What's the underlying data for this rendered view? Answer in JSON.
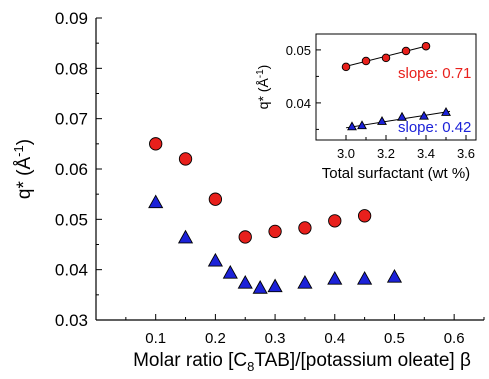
{
  "chart_data": [
    {
      "type": "scatter",
      "xlabel_parts": {
        "pre": "Molar ratio [C",
        "sub": "8",
        "post": "TAB]/[potassium oleate] β"
      },
      "ylabel_parts": {
        "pre": "q* (Å",
        "sup": "-1",
        "post": ")"
      },
      "xlim": [
        0.0,
        0.65
      ],
      "ylim": [
        0.03,
        0.09
      ],
      "xticks": [
        "0.1",
        "0.2",
        "0.3",
        "0.4",
        "0.5",
        "0.6"
      ],
      "xtick_values": [
        0.1,
        0.2,
        0.3,
        0.4,
        0.5,
        0.6
      ],
      "yticks": [
        "0.03",
        "0.04",
        "0.05",
        "0.06",
        "0.07",
        "0.08",
        "0.09"
      ],
      "ytick_values": [
        0.03,
        0.04,
        0.05,
        0.06,
        0.07,
        0.08,
        0.09
      ],
      "series": [
        {
          "marker": "circle",
          "color": "#e8201c",
          "x": [
            0.1,
            0.15,
            0.2,
            0.25,
            0.3,
            0.35,
            0.4,
            0.45
          ],
          "y": [
            0.065,
            0.062,
            0.054,
            0.0465,
            0.0476,
            0.0483,
            0.0497,
            0.0507
          ]
        },
        {
          "marker": "triangle",
          "color": "#1c22d8",
          "x": [
            0.1,
            0.15,
            0.2,
            0.225,
            0.25,
            0.275,
            0.3,
            0.35,
            0.4,
            0.45,
            0.5
          ],
          "y": [
            0.0533,
            0.0463,
            0.0417,
            0.0393,
            0.0373,
            0.0363,
            0.0366,
            0.0373,
            0.0381,
            0.0381,
            0.0385
          ]
        }
      ]
    },
    {
      "type": "scatter",
      "xlabel": "Total surfactant (wt %)",
      "ylabel_parts": {
        "pre": "q* (Å",
        "sup": "-1",
        "post": ")"
      },
      "xlim": [
        2.85,
        3.65
      ],
      "ylim": [
        0.033,
        0.053
      ],
      "xticks": [
        "3.0",
        "3.2",
        "3.4",
        "3.6"
      ],
      "xtick_values": [
        3.0,
        3.2,
        3.4,
        3.6
      ],
      "yticks": [
        "0.04",
        "0.05"
      ],
      "ytick_values": [
        0.04,
        0.05
      ],
      "series": [
        {
          "marker": "circle",
          "color": "#e8201c",
          "x": [
            3.0,
            3.1,
            3.2,
            3.3,
            3.4
          ],
          "y": [
            0.0468,
            0.0479,
            0.0485,
            0.0498,
            0.0507
          ],
          "fit": {
            "x": [
              2.98,
              3.42
            ],
            "y": [
              0.0467,
              0.0509
            ]
          },
          "annotation": "slope: 0.71"
        },
        {
          "marker": "triangle",
          "color": "#1c22d8",
          "x": [
            3.03,
            3.08,
            3.18,
            3.28,
            3.39,
            3.5
          ],
          "y": [
            0.0355,
            0.0357,
            0.0365,
            0.0373,
            0.0375,
            0.0382
          ],
          "fit": {
            "x": [
              3.0,
              3.52
            ],
            "y": [
              0.0353,
              0.0384
            ]
          },
          "annotation": "slope: 0.42"
        }
      ]
    }
  ]
}
